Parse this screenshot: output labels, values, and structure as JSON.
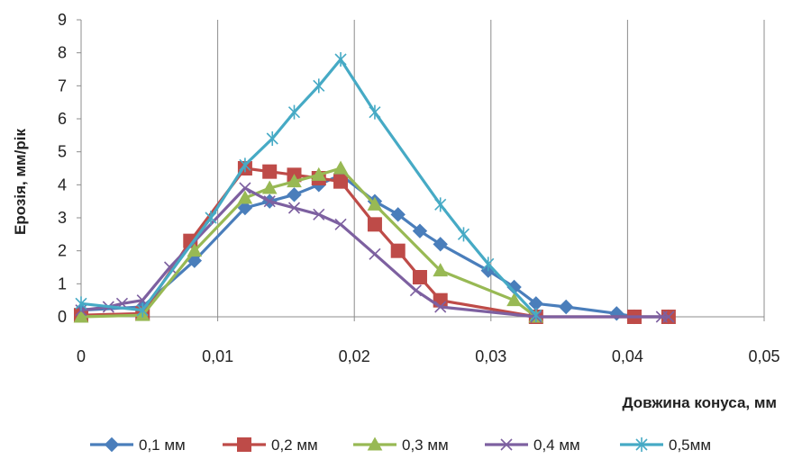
{
  "chart_data": {
    "type": "line",
    "xlabel": "Довжина конуса, мм",
    "ylabel": "Ерозія, мм/рік",
    "xlim": [
      0,
      0.05
    ],
    "ylim": [
      0,
      9
    ],
    "x_ticks": [
      {
        "value": 0,
        "label": "0"
      },
      {
        "value": 0.01,
        "label": "0,01"
      },
      {
        "value": 0.02,
        "label": "0,02"
      },
      {
        "value": 0.03,
        "label": "0,03"
      },
      {
        "value": 0.04,
        "label": "0,04"
      },
      {
        "value": 0.05,
        "label": "0,05"
      }
    ],
    "y_ticks": [
      {
        "value": 0,
        "label": "0"
      },
      {
        "value": 1,
        "label": "1"
      },
      {
        "value": 2,
        "label": "2"
      },
      {
        "value": 3,
        "label": "3"
      },
      {
        "value": 4,
        "label": "4"
      },
      {
        "value": 5,
        "label": "5"
      },
      {
        "value": 6,
        "label": "6"
      },
      {
        "value": 7,
        "label": "7"
      },
      {
        "value": 8,
        "label": "8"
      },
      {
        "value": 9,
        "label": "9"
      }
    ],
    "grid": "vertical",
    "legend_position": "bottom",
    "series": [
      {
        "name": "0,1 мм",
        "color": "#4a7ebb",
        "marker": "diamond",
        "points": [
          [
            0,
            0.2
          ],
          [
            0.0045,
            0.3
          ],
          [
            0.0083,
            1.7
          ],
          [
            0.012,
            3.3
          ],
          [
            0.0138,
            3.5
          ],
          [
            0.0156,
            3.7
          ],
          [
            0.0174,
            4.0
          ],
          [
            0.019,
            4.3
          ],
          [
            0.0215,
            3.5
          ],
          [
            0.0232,
            3.1
          ],
          [
            0.0248,
            2.6
          ],
          [
            0.0263,
            2.2
          ],
          [
            0.0298,
            1.4
          ],
          [
            0.0317,
            0.9
          ],
          [
            0.0333,
            0.4
          ],
          [
            0.0355,
            0.3
          ],
          [
            0.0392,
            0.1
          ],
          [
            0.0405,
            0.0
          ],
          [
            0.043,
            0.0
          ]
        ]
      },
      {
        "name": "0,2 мм",
        "color": "#be4b48",
        "marker": "square",
        "points": [
          [
            0,
            0.05
          ],
          [
            0.0045,
            0.1
          ],
          [
            0.008,
            2.3
          ],
          [
            0.012,
            4.5
          ],
          [
            0.0138,
            4.4
          ],
          [
            0.0156,
            4.3
          ],
          [
            0.0174,
            4.2
          ],
          [
            0.019,
            4.1
          ],
          [
            0.0215,
            2.8
          ],
          [
            0.0232,
            2.0
          ],
          [
            0.0248,
            1.2
          ],
          [
            0.0263,
            0.5
          ],
          [
            0.0333,
            0.0
          ],
          [
            0.0405,
            0.0
          ],
          [
            0.043,
            0.0
          ]
        ]
      },
      {
        "name": "0,3 мм",
        "color": "#98b954",
        "marker": "triangle",
        "points": [
          [
            0,
            0.0
          ],
          [
            0.0045,
            0.05
          ],
          [
            0.0083,
            2.0
          ],
          [
            0.012,
            3.6
          ],
          [
            0.0138,
            3.9
          ],
          [
            0.0156,
            4.1
          ],
          [
            0.0174,
            4.3
          ],
          [
            0.019,
            4.5
          ],
          [
            0.0215,
            3.4
          ],
          [
            0.0263,
            1.4
          ],
          [
            0.0317,
            0.5
          ],
          [
            0.0333,
            0.0
          ]
        ]
      },
      {
        "name": "0,4 мм",
        "color": "#7d60a0",
        "marker": "x",
        "points": [
          [
            0,
            0.2
          ],
          [
            0.002,
            0.3
          ],
          [
            0.003,
            0.4
          ],
          [
            0.0045,
            0.5
          ],
          [
            0.0065,
            1.5
          ],
          [
            0.012,
            3.9
          ],
          [
            0.0138,
            3.5
          ],
          [
            0.0156,
            3.3
          ],
          [
            0.0174,
            3.1
          ],
          [
            0.019,
            2.8
          ],
          [
            0.0215,
            1.9
          ],
          [
            0.0245,
            0.8
          ],
          [
            0.0263,
            0.3
          ],
          [
            0.0333,
            0.0
          ],
          [
            0.0425,
            0.0
          ],
          [
            0.043,
            0.0
          ]
        ]
      },
      {
        "name": "0,5мм",
        "color": "#46aac5",
        "marker": "asterisk",
        "points": [
          [
            0,
            0.4
          ],
          [
            0.0045,
            0.2
          ],
          [
            0.0095,
            3.0
          ],
          [
            0.012,
            4.6
          ],
          [
            0.014,
            5.4
          ],
          [
            0.0156,
            6.2
          ],
          [
            0.0174,
            7.0
          ],
          [
            0.019,
            7.8
          ],
          [
            0.0215,
            6.2
          ],
          [
            0.0263,
            3.4
          ],
          [
            0.028,
            2.5
          ],
          [
            0.0298,
            1.6
          ],
          [
            0.0333,
            0.05
          ]
        ]
      }
    ]
  }
}
